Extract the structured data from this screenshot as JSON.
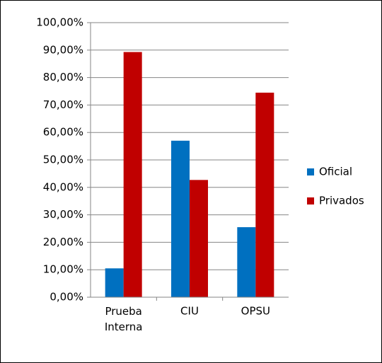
{
  "chart_data": {
    "type": "bar",
    "categories": [
      "Prueba Interna",
      "CIU",
      "OPSU"
    ],
    "series": [
      {
        "name": "Oficial",
        "color": "#0070c0",
        "values": [
          10.5,
          57,
          25.5
        ]
      },
      {
        "name": "Privados",
        "color": "#c00000",
        "values": [
          89.3,
          42.7,
          74.5
        ]
      }
    ],
    "ylim": [
      0,
      100
    ],
    "yticks": [
      {
        "value": 0,
        "label": "0,00%"
      },
      {
        "value": 10,
        "label": "10,00%"
      },
      {
        "value": 20,
        "label": "20,00%"
      },
      {
        "value": 30,
        "label": "30,00%"
      },
      {
        "value": 40,
        "label": "40,00%"
      },
      {
        "value": 50,
        "label": "50,00%"
      },
      {
        "value": 60,
        "label": "60,00%"
      },
      {
        "value": 70,
        "label": "70,00%"
      },
      {
        "value": 80,
        "label": "80,00%"
      },
      {
        "value": 90,
        "label": "90,00%"
      },
      {
        "value": 100,
        "label": "100,00%"
      }
    ],
    "grid": true,
    "legend": "right"
  }
}
